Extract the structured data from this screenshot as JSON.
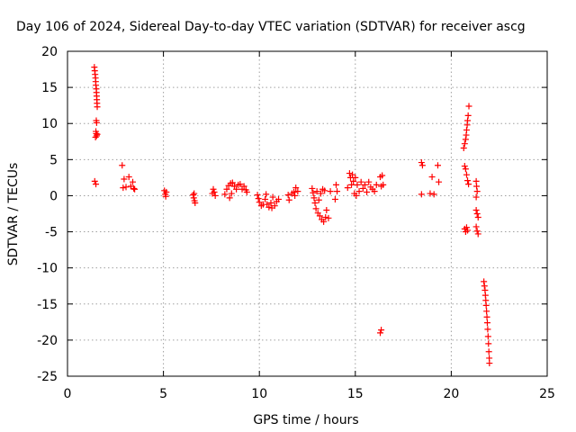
{
  "chart_data": {
    "type": "scatter",
    "title": "Day 106 of 2024, Sidereal Day-to-day VTEC variation (SDTVAR) for receiver ascg",
    "xlabel": "GPS time / hours",
    "ylabel": "SDTVAR / TECUs",
    "xlim": [
      0,
      25
    ],
    "ylim": [
      -25,
      20
    ],
    "x_ticks": [
      0,
      5,
      10,
      15,
      20,
      25
    ],
    "y_ticks": [
      20,
      15,
      10,
      5,
      0,
      -5,
      -10,
      -15,
      -20,
      -25
    ],
    "x_tick_labels": [
      "0",
      "5",
      "10",
      "15",
      "20",
      "25"
    ],
    "y_tick_labels": [
      "20",
      "15",
      "10",
      "5",
      "0",
      "-5",
      "-10",
      "-15",
      "-20",
      "-25"
    ],
    "grid": true,
    "marker": "plus",
    "color": "#ff0000",
    "series": [
      {
        "name": "SDTVAR",
        "points": [
          [
            1.4,
            17.8
          ],
          [
            1.42,
            17.3
          ],
          [
            1.44,
            16.8
          ],
          [
            1.46,
            16.3
          ],
          [
            1.47,
            15.8
          ],
          [
            1.48,
            15.3
          ],
          [
            1.5,
            14.8
          ],
          [
            1.51,
            14.3
          ],
          [
            1.52,
            13.8
          ],
          [
            1.53,
            13.3
          ],
          [
            1.54,
            12.8
          ],
          [
            1.55,
            12.3
          ],
          [
            1.5,
            10.4
          ],
          [
            1.52,
            10.1
          ],
          [
            1.48,
            8.9
          ],
          [
            1.5,
            8.6
          ],
          [
            1.52,
            8.3
          ],
          [
            1.46,
            8.1
          ],
          [
            1.55,
            8.5
          ],
          [
            1.42,
            2.0
          ],
          [
            1.48,
            1.6
          ],
          [
            2.85,
            4.2
          ],
          [
            2.95,
            2.3
          ],
          [
            2.9,
            1.1
          ],
          [
            3.05,
            1.2
          ],
          [
            3.2,
            2.6
          ],
          [
            3.3,
            1.3
          ],
          [
            3.4,
            1.9
          ],
          [
            3.5,
            0.9
          ],
          [
            3.45,
            1.0
          ],
          [
            5.05,
            0.7
          ],
          [
            5.1,
            0.2
          ],
          [
            5.15,
            0.5
          ],
          [
            5.12,
            -0.1
          ],
          [
            6.55,
            0.1
          ],
          [
            6.58,
            -0.3
          ],
          [
            6.62,
            -0.7
          ],
          [
            6.65,
            -1.0
          ],
          [
            6.6,
            0.3
          ],
          [
            7.6,
            0.9
          ],
          [
            7.65,
            0.5
          ],
          [
            7.7,
            0.0
          ],
          [
            7.55,
            0.3
          ],
          [
            8.2,
            0.2
          ],
          [
            8.3,
            0.9
          ],
          [
            8.4,
            1.4
          ],
          [
            8.5,
            1.7
          ],
          [
            8.6,
            1.8
          ],
          [
            8.7,
            1.3
          ],
          [
            8.8,
            0.9
          ],
          [
            8.9,
            1.5
          ],
          [
            8.55,
            0.3
          ],
          [
            8.45,
            -0.3
          ],
          [
            9.0,
            1.6
          ],
          [
            9.1,
            0.9
          ],
          [
            9.2,
            1.3
          ],
          [
            9.3,
            0.8
          ],
          [
            9.35,
            0.5
          ],
          [
            9.9,
            0.1
          ],
          [
            9.95,
            -0.4
          ],
          [
            10.0,
            -0.9
          ],
          [
            10.1,
            -1.4
          ],
          [
            10.2,
            -1.2
          ],
          [
            10.3,
            -0.5
          ],
          [
            10.4,
            -1.2
          ],
          [
            10.5,
            -1.6
          ],
          [
            10.6,
            -1.0
          ],
          [
            10.7,
            -0.2
          ],
          [
            10.8,
            -1.4
          ],
          [
            10.9,
            -0.8
          ],
          [
            10.35,
            0.2
          ],
          [
            10.65,
            -1.7
          ],
          [
            11.0,
            -0.5
          ],
          [
            11.5,
            0.1
          ],
          [
            11.55,
            -0.6
          ],
          [
            11.7,
            0.3
          ],
          [
            11.8,
            0.5
          ],
          [
            11.9,
            1.1
          ],
          [
            12.0,
            0.6
          ],
          [
            11.85,
            0.0
          ],
          [
            12.75,
            1.0
          ],
          [
            12.8,
            0.4
          ],
          [
            12.85,
            -0.3
          ],
          [
            12.9,
            -1.0
          ],
          [
            12.95,
            -1.8
          ],
          [
            13.05,
            -2.4
          ],
          [
            13.15,
            -2.8
          ],
          [
            13.25,
            -3.3
          ],
          [
            13.35,
            -3.6
          ],
          [
            13.45,
            -3.0
          ],
          [
            13.5,
            -2.0
          ],
          [
            13.3,
            0.9
          ],
          [
            13.2,
            0.3
          ],
          [
            13.1,
            -0.6
          ],
          [
            13.0,
            0.6
          ],
          [
            13.4,
            0.7
          ],
          [
            13.6,
            -3.1
          ],
          [
            13.7,
            0.6
          ],
          [
            13.95,
            -0.5
          ],
          [
            14.0,
            1.5
          ],
          [
            14.05,
            0.6
          ],
          [
            14.6,
            1.1
          ],
          [
            14.7,
            3.1
          ],
          [
            14.75,
            2.5
          ],
          [
            14.8,
            1.5
          ],
          [
            14.85,
            2.9
          ],
          [
            14.9,
            2.0
          ],
          [
            15.0,
            2.5
          ],
          [
            15.1,
            1.5
          ],
          [
            15.2,
            0.6
          ],
          [
            15.3,
            1.9
          ],
          [
            15.4,
            1.0
          ],
          [
            15.5,
            1.5
          ],
          [
            15.6,
            0.5
          ],
          [
            15.7,
            1.9
          ],
          [
            15.8,
            1.2
          ],
          [
            15.9,
            0.9
          ],
          [
            16.0,
            0.6
          ],
          [
            16.1,
            1.5
          ],
          [
            14.95,
            0.3
          ],
          [
            15.05,
            0.0
          ],
          [
            16.3,
            2.6
          ],
          [
            16.35,
            1.3
          ],
          [
            16.4,
            2.8
          ],
          [
            16.45,
            1.5
          ],
          [
            16.3,
            -19.0
          ],
          [
            16.35,
            -18.6
          ],
          [
            18.45,
            4.6
          ],
          [
            18.5,
            4.2
          ],
          [
            18.45,
            0.2
          ],
          [
            18.9,
            0.3
          ],
          [
            19.0,
            2.6
          ],
          [
            19.1,
            0.2
          ],
          [
            19.3,
            4.2
          ],
          [
            19.35,
            1.9
          ],
          [
            20.65,
            6.6
          ],
          [
            20.7,
            7.2
          ],
          [
            20.75,
            7.8
          ],
          [
            20.78,
            8.4
          ],
          [
            20.8,
            9.1
          ],
          [
            20.83,
            9.8
          ],
          [
            20.85,
            10.4
          ],
          [
            20.88,
            11.1
          ],
          [
            20.92,
            12.4
          ],
          [
            20.7,
            4.1
          ],
          [
            20.75,
            3.7
          ],
          [
            20.8,
            2.9
          ],
          [
            20.85,
            2.1
          ],
          [
            20.9,
            1.6
          ],
          [
            20.7,
            -4.6
          ],
          [
            20.75,
            -5.0
          ],
          [
            20.8,
            -4.4
          ],
          [
            20.85,
            -4.8
          ],
          [
            21.3,
            2.0
          ],
          [
            21.32,
            1.3
          ],
          [
            21.35,
            0.6
          ],
          [
            21.3,
            -0.2
          ],
          [
            21.3,
            -2.0
          ],
          [
            21.35,
            -2.5
          ],
          [
            21.4,
            -3.0
          ],
          [
            21.3,
            -4.3
          ],
          [
            21.35,
            -4.9
          ],
          [
            21.4,
            -5.3
          ],
          [
            21.7,
            -11.9
          ],
          [
            21.73,
            -12.5
          ],
          [
            21.76,
            -13.1
          ],
          [
            21.78,
            -13.8
          ],
          [
            21.8,
            -14.5
          ],
          [
            21.82,
            -15.2
          ],
          [
            21.84,
            -16.0
          ],
          [
            21.86,
            -16.8
          ],
          [
            21.88,
            -17.6
          ],
          [
            21.9,
            -18.5
          ],
          [
            21.92,
            -19.5
          ],
          [
            21.94,
            -20.5
          ],
          [
            21.96,
            -21.6
          ],
          [
            21.98,
            -22.5
          ],
          [
            21.99,
            -23.2
          ]
        ]
      }
    ]
  }
}
